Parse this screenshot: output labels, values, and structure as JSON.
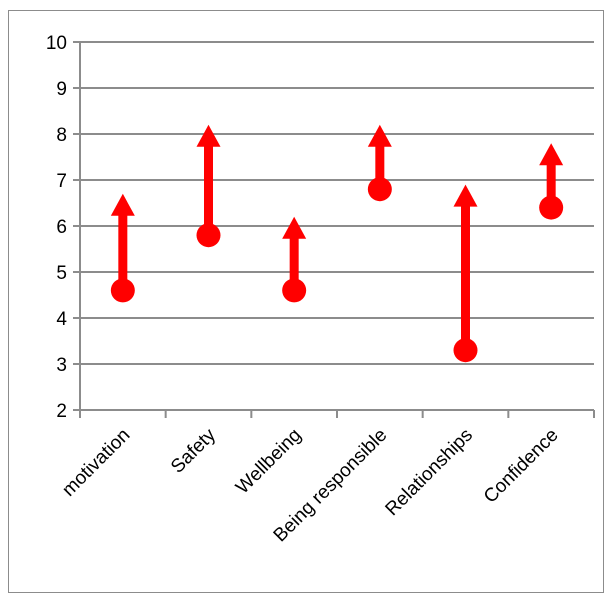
{
  "chart_data": {
    "type": "arrow-dot",
    "title": "",
    "xlabel": "",
    "ylabel": "",
    "categories": [
      "motivation",
      "Safety",
      "Wellbeing",
      "Being responsible",
      "Relationships",
      "Confidence"
    ],
    "series": [
      {
        "values": [
          4.6,
          5.8,
          4.6,
          6.8,
          3.3,
          6.4
        ]
      },
      {
        "values": [
          6.7,
          8.2,
          6.2,
          8.2,
          6.9,
          7.8
        ]
      }
    ],
    "ylim": [
      2,
      10
    ],
    "yticks": [
      2,
      3,
      4,
      5,
      6,
      7,
      8,
      9,
      10
    ],
    "grid": true,
    "legend": "none",
    "color": "#ff0000"
  }
}
